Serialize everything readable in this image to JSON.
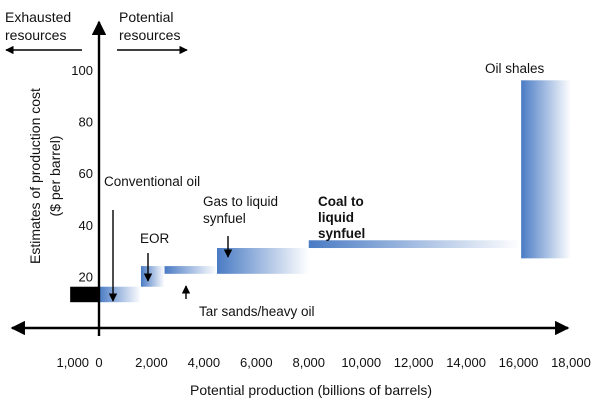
{
  "chart_data": {
    "type": "bar",
    "title": "",
    "xlabel": "Potential production (billions of barrels)",
    "ylabel_line1": "Estimates of production cost",
    "ylabel_line2": "($ per barrel)",
    "xlim": [
      -1500,
      18500
    ],
    "ylim": [
      0,
      112
    ],
    "x_ticks": [
      {
        "value": -1000,
        "label": "1,000"
      },
      {
        "value": 0,
        "label": "0"
      },
      {
        "value": 2000,
        "label": "2,000"
      },
      {
        "value": 4000,
        "label": "4,000"
      },
      {
        "value": 6000,
        "label": "6,000"
      },
      {
        "value": 8000,
        "label": "8,000"
      },
      {
        "value": 10000,
        "label": "10,000"
      },
      {
        "value": 12000,
        "label": "12,000"
      },
      {
        "value": 14000,
        "label": "14,000"
      },
      {
        "value": 16000,
        "label": "16,000"
      },
      {
        "value": 18000,
        "label": "18,000"
      }
    ],
    "y_ticks": [
      {
        "value": 20,
        "label": "20"
      },
      {
        "value": 40,
        "label": "40"
      },
      {
        "value": 60,
        "label": "60"
      },
      {
        "value": 80,
        "label": "80"
      },
      {
        "value": 100,
        "label": "100"
      }
    ],
    "region_labels": {
      "left_line1": "Exhausted",
      "left_line2": "resources",
      "right_line1": "Potential",
      "right_line2": "resources"
    },
    "exhausted_block": {
      "x_start": -1100,
      "x_end": 0,
      "y_low": 10,
      "y_high": 16
    },
    "series": [
      {
        "name": "Conventional oil",
        "x_start": 0,
        "x_end": 1600,
        "y_low": 10,
        "y_high": 16
      },
      {
        "name": "EOR",
        "x_start": 1600,
        "x_end": 2500,
        "y_low": 16,
        "y_high": 24
      },
      {
        "name": "Tar sands/heavy oil",
        "x_start": 2500,
        "x_end": 4500,
        "y_low": 21,
        "y_high": 24
      },
      {
        "name": "Gas to liquid synfuel",
        "x_start": 4500,
        "x_end": 8000,
        "y_low": 21,
        "y_high": 31
      },
      {
        "name": "Coal to liquid synfuel",
        "x_start": 8000,
        "x_end": 16100,
        "y_low": 31,
        "y_high": 34
      },
      {
        "name": "Oil shales",
        "x_start": 16100,
        "x_end": 18000,
        "y_low": 27,
        "y_high": 96
      }
    ],
    "annotations": [
      {
        "lines": [
          "Conventional oil"
        ],
        "bold": false
      },
      {
        "lines": [
          "EOR"
        ],
        "bold": false
      },
      {
        "lines": [
          "Gas to liquid",
          "synfuel"
        ],
        "bold": false
      },
      {
        "lines": [
          "Coal to",
          "liquid",
          "synfuel"
        ],
        "bold": true
      },
      {
        "lines": [
          "Oil shales"
        ],
        "bold": false
      },
      {
        "lines": [
          "Tar sands/heavy oil"
        ],
        "bold": false
      }
    ],
    "colors": {
      "bar_main": "#4a7bc4",
      "bar_fade": "#ffffff",
      "exhausted": "#000000",
      "axis": "#000000"
    }
  }
}
